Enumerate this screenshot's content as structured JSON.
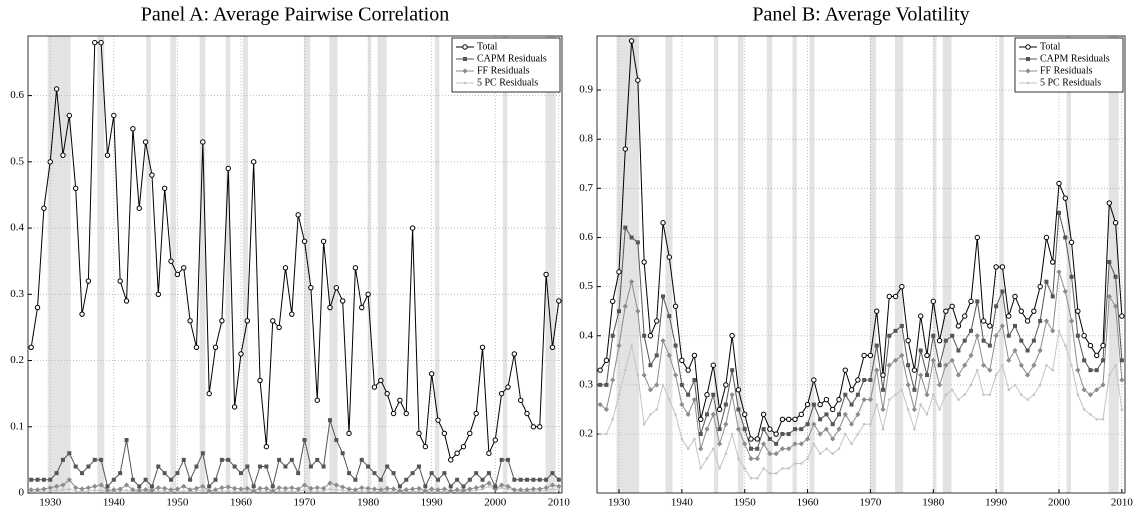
{
  "chart_data": [
    {
      "type": "line",
      "title": "Panel A: Average Pairwise Correlation",
      "x": [
        1927,
        1928,
        1929,
        1930,
        1931,
        1932,
        1933,
        1934,
        1935,
        1936,
        1937,
        1938,
        1939,
        1940,
        1941,
        1942,
        1943,
        1944,
        1945,
        1946,
        1947,
        1948,
        1949,
        1950,
        1951,
        1952,
        1953,
        1954,
        1955,
        1956,
        1957,
        1958,
        1959,
        1960,
        1961,
        1962,
        1963,
        1964,
        1965,
        1966,
        1967,
        1968,
        1969,
        1970,
        1971,
        1972,
        1973,
        1974,
        1975,
        1976,
        1977,
        1978,
        1979,
        1980,
        1981,
        1982,
        1983,
        1984,
        1985,
        1986,
        1987,
        1988,
        1989,
        1990,
        1991,
        1992,
        1993,
        1994,
        1995,
        1996,
        1997,
        1998,
        1999,
        2000,
        2001,
        2002,
        2003,
        2004,
        2005,
        2006,
        2007,
        2008,
        2009,
        2010
      ],
      "xlim": [
        1926.5,
        2010.5
      ],
      "xticks": [
        1930,
        1940,
        1950,
        1960,
        1970,
        1980,
        1990,
        2000,
        2010
      ],
      "ylim": [
        0,
        0.69
      ],
      "yticks": [
        0,
        0.1,
        0.2,
        0.3,
        0.4,
        0.5,
        0.6
      ],
      "grid": true,
      "legend": "upper right",
      "shaded": [
        [
          1929.6,
          1933.2
        ],
        [
          1937.4,
          1938.5
        ],
        [
          1945.1,
          1945.8
        ],
        [
          1948.9,
          1949.8
        ],
        [
          1953.5,
          1954.4
        ],
        [
          1957.6,
          1958.3
        ],
        [
          1960.3,
          1961.1
        ],
        [
          1969.9,
          1970.9
        ],
        [
          1973.9,
          1975.2
        ],
        [
          1980.0,
          1980.5
        ],
        [
          1981.5,
          1982.9
        ],
        [
          1990.5,
          1991.2
        ],
        [
          2001.2,
          2001.9
        ],
        [
          2007.9,
          2009.5
        ]
      ],
      "series": [
        {
          "name": "Total",
          "color": "#000000",
          "marker": "circle",
          "values": [
            0.22,
            0.28,
            0.43,
            0.5,
            0.61,
            0.51,
            0.57,
            0.46,
            0.27,
            0.32,
            0.68,
            0.68,
            0.51,
            0.57,
            0.32,
            0.29,
            0.55,
            0.43,
            0.53,
            0.48,
            0.3,
            0.46,
            0.35,
            0.33,
            0.34,
            0.26,
            0.22,
            0.53,
            0.15,
            0.22,
            0.26,
            0.49,
            0.13,
            0.21,
            0.26,
            0.5,
            0.17,
            0.07,
            0.26,
            0.25,
            0.34,
            0.27,
            0.42,
            0.38,
            0.31,
            0.14,
            0.38,
            0.28,
            0.31,
            0.29,
            0.09,
            0.34,
            0.28,
            0.3,
            0.16,
            0.17,
            0.15,
            0.12,
            0.14,
            0.12,
            0.4,
            0.09,
            0.07,
            0.18,
            0.11,
            0.09,
            0.05,
            0.06,
            0.07,
            0.09,
            0.12,
            0.22,
            0.06,
            0.08,
            0.15,
            0.16,
            0.21,
            0.14,
            0.12,
            0.1,
            0.1,
            0.33,
            0.22,
            0.29
          ]
        },
        {
          "name": "CAPM Residuals",
          "color": "#555555",
          "marker": "square",
          "values": [
            0.02,
            0.02,
            0.02,
            0.02,
            0.03,
            0.05,
            0.06,
            0.04,
            0.03,
            0.04,
            0.05,
            0.05,
            0.01,
            0.02,
            0.03,
            0.08,
            0.02,
            0.01,
            0.02,
            0.01,
            0.04,
            0.03,
            0.02,
            0.03,
            0.05,
            0.02,
            0.04,
            0.06,
            0.01,
            0.02,
            0.05,
            0.05,
            0.04,
            0.03,
            0.04,
            0.01,
            0.04,
            0.04,
            0.01,
            0.05,
            0.04,
            0.05,
            0.03,
            0.08,
            0.04,
            0.05,
            0.04,
            0.11,
            0.08,
            0.06,
            0.03,
            0.02,
            0.05,
            0.04,
            0.03,
            0.02,
            0.04,
            0.03,
            0.01,
            0.02,
            0.03,
            0.04,
            0.01,
            0.03,
            0.02,
            0.03,
            0.01,
            0.02,
            0.01,
            0.02,
            0.03,
            0.02,
            0.03,
            0.01,
            0.05,
            0.05,
            0.02,
            0.02,
            0.02,
            0.02,
            0.02,
            0.02,
            0.03,
            0.02
          ]
        },
        {
          "name": "FF Residuals",
          "color": "#8c8c8c",
          "marker": "diamond",
          "values": [
            0.005,
            0.005,
            0.006,
            0.008,
            0.01,
            0.012,
            0.02,
            0.008,
            0.006,
            0.008,
            0.01,
            0.012,
            0.004,
            0.005,
            0.006,
            0.012,
            0.005,
            0.004,
            0.005,
            0.004,
            0.008,
            0.007,
            0.005,
            0.006,
            0.01,
            0.005,
            0.007,
            0.01,
            0.003,
            0.005,
            0.008,
            0.009,
            0.007,
            0.006,
            0.007,
            0.003,
            0.007,
            0.007,
            0.003,
            0.008,
            0.007,
            0.008,
            0.006,
            0.012,
            0.007,
            0.008,
            0.007,
            0.015,
            0.012,
            0.009,
            0.006,
            0.005,
            0.008,
            0.007,
            0.006,
            0.005,
            0.007,
            0.006,
            0.003,
            0.005,
            0.006,
            0.007,
            0.003,
            0.006,
            0.005,
            0.006,
            0.003,
            0.005,
            0.004,
            0.006,
            0.008,
            0.01,
            0.015,
            0.006,
            0.012,
            0.01,
            0.005,
            0.005,
            0.005,
            0.006,
            0.006,
            0.008,
            0.012,
            0.01
          ]
        },
        {
          "name": "5 PC Residuals",
          "color": "#c4c4c4",
          "marker": "dot",
          "values": [
            0.002,
            0.002,
            0.003,
            0.003,
            0.004,
            0.005,
            0.006,
            0.003,
            0.002,
            0.003,
            0.004,
            0.004,
            0.002,
            0.002,
            0.003,
            0.004,
            0.002,
            0.002,
            0.002,
            0.002,
            0.003,
            0.003,
            0.002,
            0.002,
            0.003,
            0.002,
            0.003,
            0.004,
            0.001,
            0.002,
            0.003,
            0.003,
            0.003,
            0.002,
            0.003,
            0.001,
            0.003,
            0.003,
            0.001,
            0.003,
            0.003,
            0.003,
            0.002,
            0.005,
            0.003,
            0.003,
            0.003,
            0.006,
            0.005,
            0.004,
            0.002,
            0.002,
            0.003,
            0.003,
            0.002,
            0.002,
            0.003,
            0.002,
            0.001,
            0.002,
            0.002,
            0.003,
            0.001,
            0.002,
            0.002,
            0.002,
            0.001,
            0.002,
            0.002,
            0.003,
            0.004,
            0.006,
            0.01,
            0.004,
            0.008,
            0.006,
            0.003,
            0.002,
            0.002,
            0.003,
            0.003,
            0.004,
            0.006,
            0.005
          ]
        }
      ]
    },
    {
      "type": "line",
      "title": "Panel B: Average Volatility",
      "x": [
        1927,
        1928,
        1929,
        1930,
        1931,
        1932,
        1933,
        1934,
        1935,
        1936,
        1937,
        1938,
        1939,
        1940,
        1941,
        1942,
        1943,
        1944,
        1945,
        1946,
        1947,
        1948,
        1949,
        1950,
        1951,
        1952,
        1953,
        1954,
        1955,
        1956,
        1957,
        1958,
        1959,
        1960,
        1961,
        1962,
        1963,
        1964,
        1965,
        1966,
        1967,
        1968,
        1969,
        1970,
        1971,
        1972,
        1973,
        1974,
        1975,
        1976,
        1977,
        1978,
        1979,
        1980,
        1981,
        1982,
        1983,
        1984,
        1985,
        1986,
        1987,
        1988,
        1989,
        1990,
        1991,
        1992,
        1993,
        1994,
        1995,
        1996,
        1997,
        1998,
        1999,
        2000,
        2001,
        2002,
        2003,
        2004,
        2005,
        2006,
        2007,
        2008,
        2009,
        2010
      ],
      "xlim": [
        1926.5,
        2010.5
      ],
      "xticks": [
        1930,
        1940,
        1950,
        1960,
        1970,
        1980,
        1990,
        2000,
        2010
      ],
      "ylim": [
        0.08,
        1.01
      ],
      "yticks": [
        0.2,
        0.3,
        0.4,
        0.5,
        0.6,
        0.7,
        0.8,
        0.9
      ],
      "grid": true,
      "legend": "upper right",
      "shaded": [
        [
          1929.6,
          1933.2
        ],
        [
          1937.4,
          1938.5
        ],
        [
          1945.1,
          1945.8
        ],
        [
          1948.9,
          1949.8
        ],
        [
          1953.5,
          1954.4
        ],
        [
          1957.6,
          1958.3
        ],
        [
          1960.3,
          1961.1
        ],
        [
          1969.9,
          1970.9
        ],
        [
          1973.9,
          1975.2
        ],
        [
          1980.0,
          1980.5
        ],
        [
          1981.5,
          1982.9
        ],
        [
          1990.5,
          1991.2
        ],
        [
          2001.2,
          2001.9
        ],
        [
          2007.9,
          2009.5
        ]
      ],
      "series": [
        {
          "name": "Total",
          "color": "#000000",
          "marker": "circle",
          "values": [
            0.33,
            0.35,
            0.47,
            0.53,
            0.78,
            1.0,
            0.92,
            0.55,
            0.4,
            0.43,
            0.63,
            0.56,
            0.46,
            0.35,
            0.33,
            0.36,
            0.23,
            0.28,
            0.34,
            0.25,
            0.3,
            0.4,
            0.29,
            0.24,
            0.19,
            0.19,
            0.24,
            0.21,
            0.2,
            0.23,
            0.23,
            0.23,
            0.24,
            0.26,
            0.31,
            0.26,
            0.27,
            0.25,
            0.27,
            0.33,
            0.29,
            0.31,
            0.36,
            0.36,
            0.45,
            0.32,
            0.48,
            0.48,
            0.5,
            0.39,
            0.33,
            0.44,
            0.36,
            0.47,
            0.39,
            0.45,
            0.46,
            0.42,
            0.44,
            0.47,
            0.6,
            0.43,
            0.42,
            0.54,
            0.54,
            0.44,
            0.48,
            0.45,
            0.43,
            0.45,
            0.5,
            0.6,
            0.55,
            0.71,
            0.68,
            0.59,
            0.45,
            0.4,
            0.38,
            0.36,
            0.38,
            0.67,
            0.63,
            0.44
          ]
        },
        {
          "name": "CAPM Residuals",
          "color": "#555555",
          "marker": "square",
          "values": [
            0.3,
            0.3,
            0.4,
            0.45,
            0.62,
            0.6,
            0.59,
            0.4,
            0.34,
            0.36,
            0.48,
            0.44,
            0.38,
            0.3,
            0.28,
            0.31,
            0.2,
            0.24,
            0.28,
            0.21,
            0.26,
            0.33,
            0.25,
            0.21,
            0.17,
            0.17,
            0.21,
            0.19,
            0.18,
            0.2,
            0.2,
            0.21,
            0.21,
            0.22,
            0.26,
            0.23,
            0.24,
            0.22,
            0.24,
            0.28,
            0.26,
            0.28,
            0.31,
            0.31,
            0.38,
            0.29,
            0.4,
            0.41,
            0.42,
            0.34,
            0.29,
            0.37,
            0.32,
            0.4,
            0.34,
            0.39,
            0.4,
            0.37,
            0.39,
            0.41,
            0.47,
            0.39,
            0.38,
            0.46,
            0.49,
            0.4,
            0.42,
            0.39,
            0.37,
            0.39,
            0.43,
            0.51,
            0.48,
            0.65,
            0.6,
            0.52,
            0.4,
            0.35,
            0.33,
            0.33,
            0.35,
            0.55,
            0.52,
            0.35
          ]
        },
        {
          "name": "FF Residuals",
          "color": "#8c8c8c",
          "marker": "diamond",
          "values": [
            0.26,
            0.25,
            0.31,
            0.38,
            0.46,
            0.51,
            0.45,
            0.32,
            0.29,
            0.3,
            0.39,
            0.36,
            0.32,
            0.26,
            0.24,
            0.27,
            0.17,
            0.21,
            0.24,
            0.18,
            0.22,
            0.28,
            0.21,
            0.18,
            0.15,
            0.15,
            0.18,
            0.16,
            0.16,
            0.17,
            0.17,
            0.18,
            0.18,
            0.19,
            0.22,
            0.2,
            0.21,
            0.19,
            0.21,
            0.24,
            0.22,
            0.24,
            0.27,
            0.27,
            0.33,
            0.25,
            0.34,
            0.35,
            0.36,
            0.3,
            0.25,
            0.32,
            0.28,
            0.35,
            0.3,
            0.34,
            0.35,
            0.32,
            0.34,
            0.36,
            0.4,
            0.34,
            0.33,
            0.4,
            0.42,
            0.35,
            0.37,
            0.34,
            0.32,
            0.34,
            0.37,
            0.43,
            0.41,
            0.53,
            0.49,
            0.43,
            0.33,
            0.29,
            0.28,
            0.29,
            0.3,
            0.48,
            0.46,
            0.31
          ]
        },
        {
          "name": "5 PC Residuals",
          "color": "#c4c4c4",
          "marker": "dot",
          "values": [
            0.2,
            0.2,
            0.23,
            0.28,
            0.33,
            0.38,
            0.32,
            0.22,
            0.24,
            0.25,
            0.3,
            0.27,
            0.24,
            0.19,
            0.17,
            0.19,
            0.13,
            0.15,
            0.17,
            0.13,
            0.16,
            0.2,
            0.15,
            0.13,
            0.11,
            0.11,
            0.13,
            0.12,
            0.12,
            0.13,
            0.13,
            0.14,
            0.14,
            0.15,
            0.18,
            0.16,
            0.17,
            0.16,
            0.17,
            0.2,
            0.18,
            0.2,
            0.22,
            0.22,
            0.26,
            0.21,
            0.27,
            0.28,
            0.29,
            0.25,
            0.21,
            0.26,
            0.24,
            0.28,
            0.25,
            0.28,
            0.29,
            0.27,
            0.28,
            0.3,
            0.33,
            0.28,
            0.28,
            0.32,
            0.34,
            0.29,
            0.3,
            0.28,
            0.27,
            0.28,
            0.3,
            0.34,
            0.33,
            0.41,
            0.38,
            0.34,
            0.28,
            0.25,
            0.24,
            0.23,
            0.23,
            0.32,
            0.34,
            0.25
          ]
        }
      ]
    }
  ]
}
